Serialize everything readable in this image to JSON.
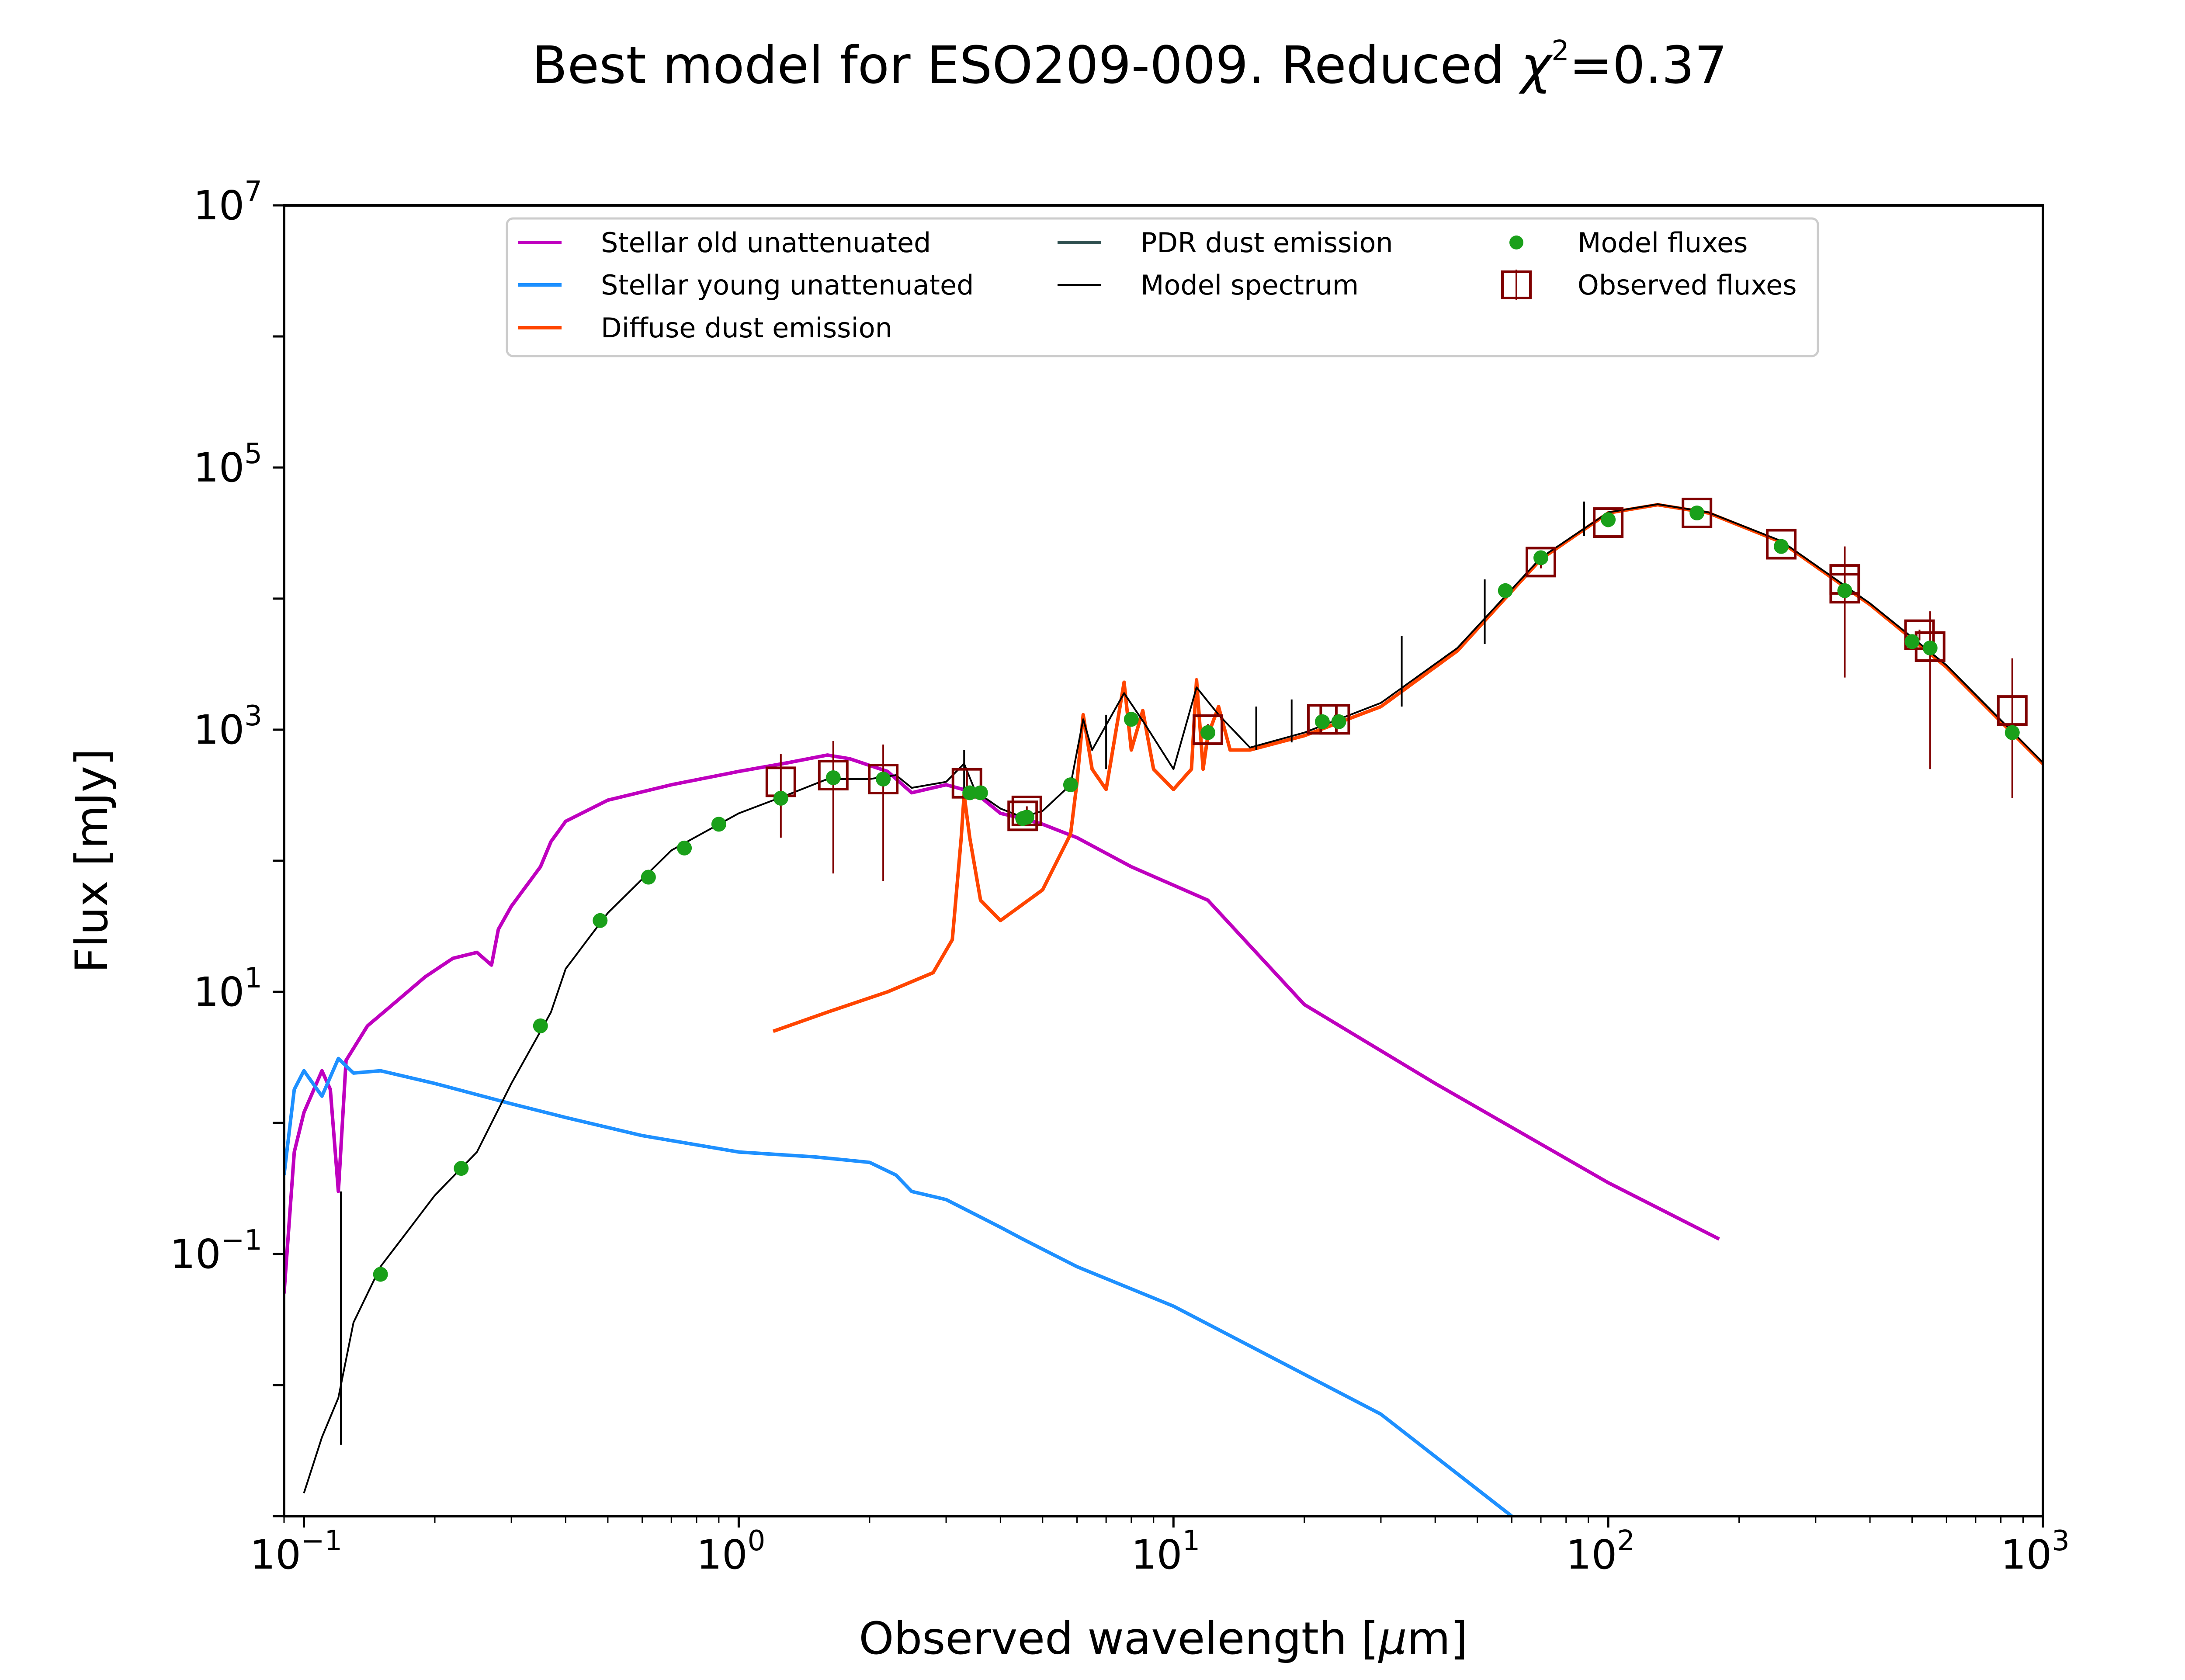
{
  "title": "Best model for ESO209-009. Reduced χ²=0.37",
  "chart_data": {
    "type": "line",
    "title": "Best model for ESO209-009. Reduced χ²=0.37",
    "title_parts": {
      "prefix": "Best model for ESO209-009. Reduced ",
      "chi": "χ",
      "sup": "2",
      "suffix": "=0.37"
    },
    "xlabel": "Observed wavelength [μm]",
    "xlabel_parts": {
      "prefix": "Observed wavelength [",
      "mu": "μ",
      "suffix": "m]"
    },
    "ylabel": "Flux [mJy]",
    "x_scale": "log",
    "y_scale": "log",
    "xlim": [
      0.09,
      1000
    ],
    "ylim": [
      0.001,
      10000000
    ],
    "grid": false,
    "legend_position": "top-center",
    "x_ticks": [
      {
        "value": 0.1,
        "base": "10",
        "exp": "−1"
      },
      {
        "value": 1,
        "base": "10",
        "exp": "0"
      },
      {
        "value": 10,
        "base": "10",
        "exp": "1"
      },
      {
        "value": 100,
        "base": "10",
        "exp": "2"
      },
      {
        "value": 1000,
        "base": "10",
        "exp": "3"
      }
    ],
    "y_ticks": [
      {
        "value": 0.1,
        "base": "10",
        "exp": "−1"
      },
      {
        "value": 10,
        "base": "10",
        "exp": "1"
      },
      {
        "value": 1000,
        "base": "10",
        "exp": "3"
      },
      {
        "value": 100000,
        "base": "10",
        "exp": "5"
      },
      {
        "value": 10000000,
        "base": "10",
        "exp": "7"
      }
    ],
    "series": [
      {
        "name": "Stellar old unattenuated",
        "color": "#bf00bf",
        "points": [
          [
            0.09,
            0.05
          ],
          [
            0.095,
            0.6
          ],
          [
            0.1,
            1.2
          ],
          [
            0.11,
            2.5
          ],
          [
            0.115,
            1.8
          ],
          [
            0.12,
            0.3
          ],
          [
            0.125,
            3.0
          ],
          [
            0.14,
            5.5
          ],
          [
            0.16,
            8.0
          ],
          [
            0.19,
            13
          ],
          [
            0.22,
            18
          ],
          [
            0.25,
            20
          ],
          [
            0.27,
            16
          ],
          [
            0.28,
            30
          ],
          [
            0.3,
            45
          ],
          [
            0.35,
            90
          ],
          [
            0.37,
            140
          ],
          [
            0.4,
            200
          ],
          [
            0.5,
            290
          ],
          [
            0.7,
            380
          ],
          [
            1.0,
            480
          ],
          [
            1.3,
            560
          ],
          [
            1.6,
            640
          ],
          [
            1.8,
            600
          ],
          [
            2.2,
            480
          ],
          [
            2.5,
            330
          ],
          [
            3.0,
            380
          ],
          [
            3.5,
            330
          ],
          [
            4.0,
            230
          ],
          [
            4.5,
            210
          ],
          [
            5.0,
            190
          ],
          [
            6.0,
            150
          ],
          [
            8.0,
            90
          ],
          [
            12.0,
            50
          ],
          [
            20.0,
            8.0
          ],
          [
            40.0,
            2.0
          ],
          [
            100.0,
            0.35
          ],
          [
            180.0,
            0.13
          ]
        ]
      },
      {
        "name": "Stellar young unattenuated",
        "color": "#1e90ff",
        "points": [
          [
            0.09,
            0.4
          ],
          [
            0.095,
            1.8
          ],
          [
            0.1,
            2.5
          ],
          [
            0.11,
            1.6
          ],
          [
            0.12,
            3.1
          ],
          [
            0.13,
            2.4
          ],
          [
            0.15,
            2.5
          ],
          [
            0.2,
            2.0
          ],
          [
            0.3,
            1.4
          ],
          [
            0.4,
            1.1
          ],
          [
            0.6,
            0.8
          ],
          [
            1.0,
            0.6
          ],
          [
            1.5,
            0.55
          ],
          [
            2.0,
            0.5
          ],
          [
            2.3,
            0.4
          ],
          [
            2.5,
            0.3
          ],
          [
            3.0,
            0.26
          ],
          [
            4.0,
            0.16
          ],
          [
            4.5,
            0.13
          ],
          [
            6.0,
            0.08
          ],
          [
            10.0,
            0.04
          ],
          [
            30.0,
            0.006
          ],
          [
            60.0,
            0.001
          ]
        ]
      },
      {
        "name": "Diffuse dust emission",
        "color": "#ff4500",
        "points": [
          [
            1.2,
            5
          ],
          [
            1.6,
            7
          ],
          [
            2.2,
            10
          ],
          [
            2.8,
            14
          ],
          [
            3.1,
            25
          ],
          [
            3.25,
            150
          ],
          [
            3.3,
            320
          ],
          [
            3.4,
            150
          ],
          [
            3.6,
            50
          ],
          [
            4.0,
            35
          ],
          [
            5.0,
            60
          ],
          [
            5.8,
            160
          ],
          [
            6.0,
            400
          ],
          [
            6.2,
            1300
          ],
          [
            6.5,
            500
          ],
          [
            7.0,
            350
          ],
          [
            7.7,
            2300
          ],
          [
            8.0,
            700
          ],
          [
            8.5,
            1400
          ],
          [
            9.0,
            500
          ],
          [
            10.0,
            350
          ],
          [
            11.0,
            500
          ],
          [
            11.3,
            2400
          ],
          [
            11.7,
            500
          ],
          [
            12.0,
            900
          ],
          [
            12.7,
            1500
          ],
          [
            13.5,
            700
          ],
          [
            15.0,
            700
          ],
          [
            20.0,
            900
          ],
          [
            30.0,
            1500
          ],
          [
            45.0,
            4000
          ],
          [
            70.0,
            20000
          ],
          [
            100.0,
            45000
          ],
          [
            130.0,
            52000
          ],
          [
            170.0,
            45000
          ],
          [
            250.0,
            27000
          ],
          [
            400.0,
            9000
          ],
          [
            600.0,
            3000
          ],
          [
            1000.0,
            550
          ]
        ]
      },
      {
        "name": "PDR dust emission",
        "color": "#2f4f4f",
        "points": []
      },
      {
        "name": "Model spectrum",
        "color": "#000000",
        "points": [
          [
            0.1,
            0.0015
          ],
          [
            0.11,
            0.004
          ],
          [
            0.12,
            0.008
          ],
          [
            0.13,
            0.03
          ],
          [
            0.15,
            0.08
          ],
          [
            0.2,
            0.28
          ],
          [
            0.25,
            0.6
          ],
          [
            0.3,
            2.0
          ],
          [
            0.35,
            5.0
          ],
          [
            0.37,
            7.0
          ],
          [
            0.4,
            15
          ],
          [
            0.5,
            40
          ],
          [
            0.7,
            120
          ],
          [
            1.0,
            230
          ],
          [
            1.3,
            320
          ],
          [
            1.6,
            420
          ],
          [
            2.0,
            420
          ],
          [
            2.3,
            450
          ],
          [
            2.5,
            360
          ],
          [
            3.0,
            400
          ],
          [
            3.3,
            550
          ],
          [
            3.5,
            340
          ],
          [
            4.0,
            250
          ],
          [
            4.5,
            215
          ],
          [
            5.0,
            240
          ],
          [
            5.8,
            380
          ],
          [
            6.2,
            1200
          ],
          [
            6.5,
            700
          ],
          [
            7.7,
            1900
          ],
          [
            8.6,
            1100
          ],
          [
            10.0,
            500
          ],
          [
            11.3,
            2100
          ],
          [
            12.7,
            1300
          ],
          [
            15.0,
            730
          ],
          [
            20.0,
            950
          ],
          [
            30.0,
            1600
          ],
          [
            45.0,
            4200
          ],
          [
            70.0,
            20500
          ],
          [
            100.0,
            45500
          ],
          [
            130.0,
            52500
          ],
          [
            170.0,
            45500
          ],
          [
            250.0,
            27500
          ],
          [
            400.0,
            9200
          ],
          [
            600.0,
            3100
          ],
          [
            1000.0,
            560
          ]
        ]
      }
    ],
    "model_fluxes": {
      "name": "Model fluxes",
      "color": "#1aa01a",
      "points": [
        [
          0.15,
          0.07
        ],
        [
          0.23,
          0.45
        ],
        [
          0.35,
          5.5
        ],
        [
          0.48,
          35
        ],
        [
          0.62,
          75
        ],
        [
          0.75,
          125
        ],
        [
          0.9,
          190
        ],
        [
          1.25,
          300
        ],
        [
          1.65,
          430
        ],
        [
          2.15,
          420
        ],
        [
          3.4,
          330
        ],
        [
          3.6,
          330
        ],
        [
          4.5,
          210
        ],
        [
          4.6,
          215
        ],
        [
          5.8,
          380
        ],
        [
          8.0,
          1200
        ],
        [
          12.0,
          950
        ],
        [
          22.0,
          1150
        ],
        [
          24.0,
          1150
        ],
        [
          58.0,
          11500
        ],
        [
          70.0,
          20500
        ],
        [
          100.0,
          40000
        ],
        [
          160.0,
          45000
        ],
        [
          250.0,
          25000
        ],
        [
          350.0,
          11500
        ],
        [
          500.0,
          4700
        ],
        [
          550.0,
          4200
        ],
        [
          850.0,
          950
        ]
      ]
    },
    "observed_fluxes": {
      "name": "Observed fluxes",
      "color": "#800000",
      "points": [
        {
          "x": 1.25,
          "y": 400,
          "lo": 150,
          "hi": 650
        },
        {
          "x": 1.65,
          "y": 450,
          "lo": 80,
          "hi": 820
        },
        {
          "x": 2.15,
          "y": 420,
          "lo": 70,
          "hi": 770
        },
        {
          "x": 3.35,
          "y": 390,
          "lo": 300,
          "hi": 480
        },
        {
          "x": 4.5,
          "y": 220,
          "lo": 200,
          "hi": 240
        },
        {
          "x": 4.6,
          "y": 240,
          "lo": 220,
          "hi": 260
        },
        {
          "x": 12.0,
          "y": 1000,
          "lo": 900,
          "hi": 1100
        },
        {
          "x": 22.0,
          "y": 1200,
          "lo": 1100,
          "hi": 1300
        },
        {
          "x": 23.5,
          "y": 1200,
          "lo": 1100,
          "hi": 1300
        },
        {
          "x": 70.0,
          "y": 19000,
          "lo": 17000,
          "hi": 21000
        },
        {
          "x": 100.0,
          "y": 38000,
          "lo": 35000,
          "hi": 41000
        },
        {
          "x": 160.0,
          "y": 45000,
          "lo": 42000,
          "hi": 48000
        },
        {
          "x": 250.0,
          "y": 26000,
          "lo": 24000,
          "hi": 28000
        },
        {
          "x": 350.0,
          "y": 14000,
          "lo": 2500,
          "hi": 25000
        },
        {
          "x": 350.0,
          "y": 12000,
          "lo": 10000,
          "hi": 14000
        },
        {
          "x": 520.0,
          "y": 5300,
          "lo": 4800,
          "hi": 5800
        },
        {
          "x": 550.0,
          "y": 4300,
          "lo": 500,
          "hi": 8000
        },
        {
          "x": 850.0,
          "y": 1400,
          "lo": 300,
          "hi": 3500
        }
      ]
    },
    "line_spikes": [
      {
        "x": 0.1216,
        "y0": 0.0035,
        "y1": 0.3
      },
      {
        "x": 3.3,
        "y0": 350,
        "y1": 700
      },
      {
        "x": 7.0,
        "y0": 500,
        "y1": 1300
      },
      {
        "x": 15.5,
        "y0": 700,
        "y1": 1500
      },
      {
        "x": 18.7,
        "y0": 800,
        "y1": 1700
      },
      {
        "x": 33.5,
        "y0": 1500,
        "y1": 5200
      },
      {
        "x": 52.0,
        "y0": 4500,
        "y1": 14000
      },
      {
        "x": 88.0,
        "y0": 30000,
        "y1": 55000
      }
    ],
    "legend": [
      {
        "label": "Stellar old unattenuated",
        "color": "#bf00bf",
        "marker": "line"
      },
      {
        "label": "Stellar young unattenuated",
        "color": "#1e90ff",
        "marker": "line"
      },
      {
        "label": "Diffuse dust emission",
        "color": "#ff4500",
        "marker": "line"
      },
      {
        "label": "PDR dust emission",
        "color": "#2f4f4f",
        "marker": "line"
      },
      {
        "label": "Model spectrum",
        "color": "#000000",
        "marker": "thin-line"
      },
      {
        "label": "Model fluxes",
        "color": "#1aa01a",
        "marker": "dot"
      },
      {
        "label": "Observed fluxes",
        "color": "#800000",
        "marker": "square-errorbar"
      }
    ]
  }
}
